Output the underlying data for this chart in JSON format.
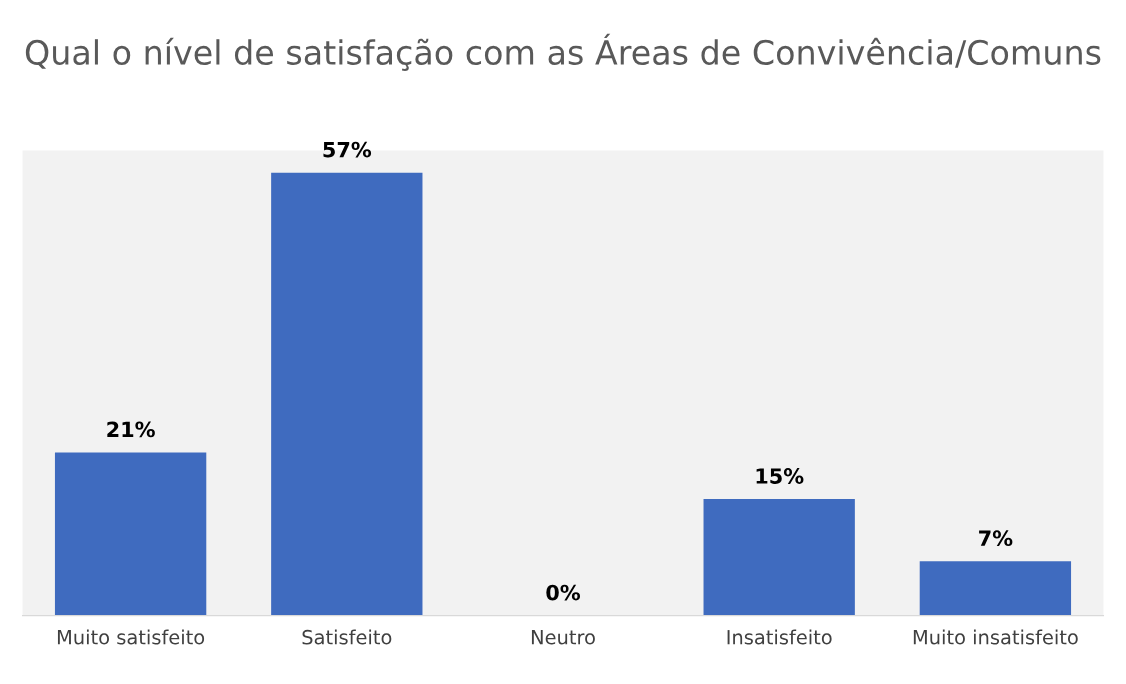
{
  "chart_data": {
    "type": "bar",
    "title": "Qual o nível de satisfação com as Áreas de Convivência/Comuns",
    "categories": [
      "Muito satisfeito",
      "Satisfeito",
      "Neutro",
      "Insatisfeito",
      "Muito insatisfeito"
    ],
    "values": [
      21,
      57,
      0,
      15,
      7
    ],
    "value_labels": [
      "21%",
      "57%",
      "0%",
      "15%",
      "7%"
    ],
    "color": "#3f6bbf"
  }
}
